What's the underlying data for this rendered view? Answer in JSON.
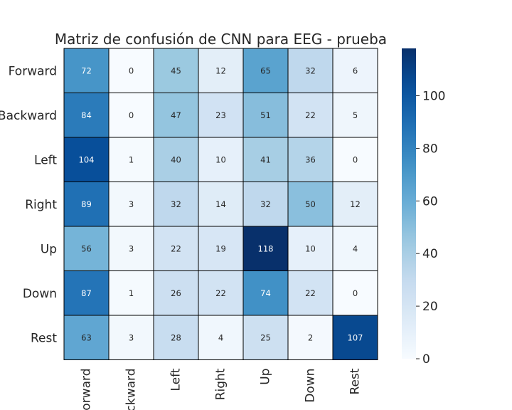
{
  "chart_data": {
    "type": "heatmap",
    "title": "Matriz de confusión de CNN para EEG - prueba",
    "row_labels": [
      "Forward",
      "Backward",
      "Left",
      "Right",
      "Up",
      "Down",
      "Rest"
    ],
    "col_labels": [
      "Forward",
      "Backward",
      "Left",
      "Right",
      "Up",
      "Down",
      "Rest"
    ],
    "values": [
      [
        72,
        0,
        45,
        12,
        65,
        32,
        6
      ],
      [
        84,
        0,
        47,
        23,
        51,
        22,
        5
      ],
      [
        104,
        1,
        40,
        10,
        41,
        36,
        0
      ],
      [
        89,
        3,
        32,
        14,
        32,
        50,
        12
      ],
      [
        56,
        3,
        22,
        19,
        118,
        10,
        4
      ],
      [
        87,
        1,
        26,
        22,
        74,
        22,
        0
      ],
      [
        63,
        3,
        28,
        4,
        25,
        2,
        107
      ]
    ],
    "colormap": "Blues",
    "vmin": 0,
    "vmax": 118,
    "colorbar_ticks": [
      "0",
      "20",
      "40",
      "60",
      "80",
      "100"
    ],
    "colors": {
      "cell_border": "#000000",
      "text": "#262626"
    }
  }
}
